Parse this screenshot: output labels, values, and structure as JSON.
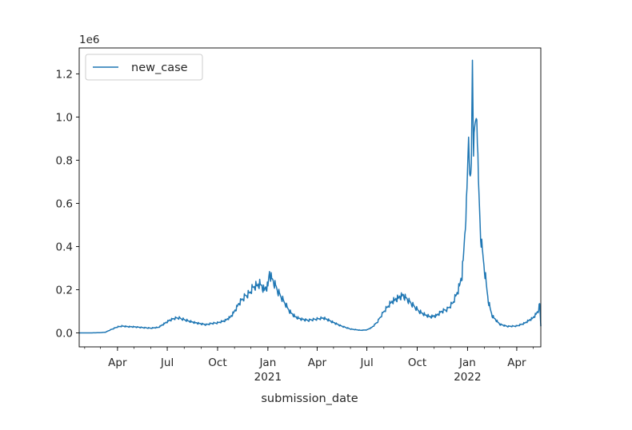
{
  "chart_data": {
    "type": "line",
    "title": "",
    "xlabel": "submission_date",
    "ylabel": "",
    "y_offset_text": "1e6",
    "xlim": [
      "2020-01-22",
      "2022-05-15"
    ],
    "ylim": [
      -0.065,
      1.32
    ],
    "y_ticks": [
      0.0,
      0.2,
      0.4,
      0.6,
      0.8,
      1.0,
      1.2
    ],
    "x_ticks": [
      {
        "date": "2020-04-01",
        "label": "Apr",
        "year": ""
      },
      {
        "date": "2020-07-01",
        "label": "Jul",
        "year": ""
      },
      {
        "date": "2020-10-01",
        "label": "Oct",
        "year": ""
      },
      {
        "date": "2021-01-01",
        "label": "Jan",
        "year": "2021"
      },
      {
        "date": "2021-04-01",
        "label": "Apr",
        "year": ""
      },
      {
        "date": "2021-07-01",
        "label": "Jul",
        "year": ""
      },
      {
        "date": "2021-10-01",
        "label": "Oct",
        "year": ""
      },
      {
        "date": "2022-01-01",
        "label": "Jan",
        "year": "2022"
      },
      {
        "date": "2022-04-01",
        "label": "Apr",
        "year": ""
      }
    ],
    "legend": {
      "position": "upper-left",
      "entries": [
        "new_case"
      ]
    },
    "grid": false,
    "series": [
      {
        "name": "new_case",
        "color": "#1f77b4",
        "points": [
          [
            "2020-01-22",
            0.0
          ],
          [
            "2020-02-15",
            0.0
          ],
          [
            "2020-03-01",
            0.001
          ],
          [
            "2020-03-10",
            0.003
          ],
          [
            "2020-03-20",
            0.015
          ],
          [
            "2020-04-01",
            0.028
          ],
          [
            "2020-04-10",
            0.032
          ],
          [
            "2020-04-20",
            0.029
          ],
          [
            "2020-05-01",
            0.028
          ],
          [
            "2020-05-10",
            0.026
          ],
          [
            "2020-05-20",
            0.024
          ],
          [
            "2020-06-01",
            0.022
          ],
          [
            "2020-06-15",
            0.026
          ],
          [
            "2020-06-25",
            0.042
          ],
          [
            "2020-07-05",
            0.058
          ],
          [
            "2020-07-15",
            0.068
          ],
          [
            "2020-07-22",
            0.07
          ],
          [
            "2020-08-01",
            0.062
          ],
          [
            "2020-08-10",
            0.055
          ],
          [
            "2020-08-20",
            0.048
          ],
          [
            "2020-09-01",
            0.042
          ],
          [
            "2020-09-10",
            0.038
          ],
          [
            "2020-09-20",
            0.044
          ],
          [
            "2020-10-01",
            0.047
          ],
          [
            "2020-10-15",
            0.058
          ],
          [
            "2020-10-25",
            0.075
          ],
          [
            "2020-11-01",
            0.1
          ],
          [
            "2020-11-10",
            0.14
          ],
          [
            "2020-11-20",
            0.17
          ],
          [
            "2020-11-28",
            0.185
          ],
          [
            "2020-12-05",
            0.215
          ],
          [
            "2020-12-10",
            0.22
          ],
          [
            "2020-12-18",
            0.23
          ],
          [
            "2020-12-25",
            0.2
          ],
          [
            "2021-01-01",
            0.22
          ],
          [
            "2021-01-04",
            0.28
          ],
          [
            "2021-01-08",
            0.25
          ],
          [
            "2021-01-12",
            0.235
          ],
          [
            "2021-01-20",
            0.19
          ],
          [
            "2021-02-01",
            0.14
          ],
          [
            "2021-02-10",
            0.1
          ],
          [
            "2021-02-20",
            0.075
          ],
          [
            "2021-03-01",
            0.065
          ],
          [
            "2021-03-15",
            0.058
          ],
          [
            "2021-04-01",
            0.065
          ],
          [
            "2021-04-12",
            0.07
          ],
          [
            "2021-04-20",
            0.062
          ],
          [
            "2021-05-01",
            0.048
          ],
          [
            "2021-05-15",
            0.032
          ],
          [
            "2021-06-01",
            0.018
          ],
          [
            "2021-06-20",
            0.012
          ],
          [
            "2021-07-01",
            0.014
          ],
          [
            "2021-07-10",
            0.025
          ],
          [
            "2021-07-20",
            0.05
          ],
          [
            "2021-08-01",
            0.1
          ],
          [
            "2021-08-15",
            0.145
          ],
          [
            "2021-08-25",
            0.16
          ],
          [
            "2021-09-05",
            0.175
          ],
          [
            "2021-09-15",
            0.15
          ],
          [
            "2021-09-25",
            0.125
          ],
          [
            "2021-10-05",
            0.1
          ],
          [
            "2021-10-15",
            0.085
          ],
          [
            "2021-10-25",
            0.075
          ],
          [
            "2021-11-05",
            0.08
          ],
          [
            "2021-11-15",
            0.1
          ],
          [
            "2021-11-25",
            0.11
          ],
          [
            "2021-12-05",
            0.14
          ],
          [
            "2021-12-15",
            0.2
          ],
          [
            "2021-12-22",
            0.27
          ],
          [
            "2021-12-27",
            0.45
          ],
          [
            "2021-12-30",
            0.6
          ],
          [
            "2022-01-03",
            0.9
          ],
          [
            "2022-01-06",
            0.7
          ],
          [
            "2022-01-08",
            0.78
          ],
          [
            "2022-01-10",
            1.26
          ],
          [
            "2022-01-12",
            0.85
          ],
          [
            "2022-01-14",
            0.95
          ],
          [
            "2022-01-18",
            1.01
          ],
          [
            "2022-01-21",
            0.7
          ],
          [
            "2022-01-25",
            0.45
          ],
          [
            "2022-02-01",
            0.3
          ],
          [
            "2022-02-08",
            0.15
          ],
          [
            "2022-02-15",
            0.08
          ],
          [
            "2022-03-01",
            0.04
          ],
          [
            "2022-03-15",
            0.03
          ],
          [
            "2022-04-01",
            0.032
          ],
          [
            "2022-04-15",
            0.045
          ],
          [
            "2022-05-01",
            0.07
          ],
          [
            "2022-05-10",
            0.1
          ],
          [
            "2022-05-13",
            0.135
          ],
          [
            "2022-05-15",
            0.03
          ]
        ]
      }
    ]
  }
}
